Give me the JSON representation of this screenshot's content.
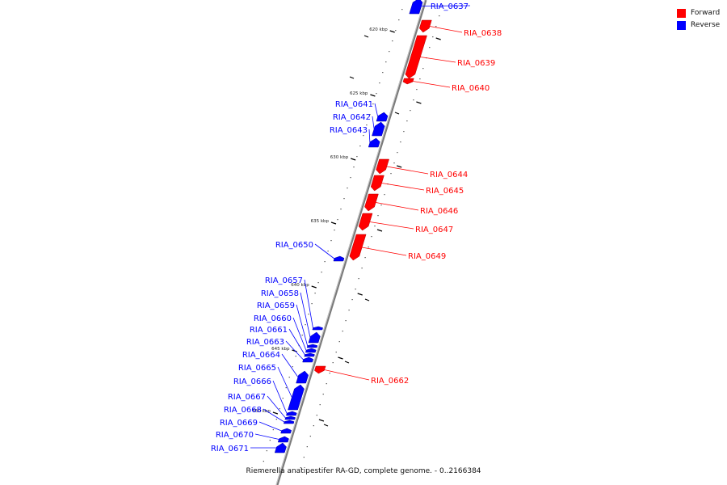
{
  "legend": {
    "forward_label": "Forward",
    "reverse_label": "Reverse",
    "forward_color": "#ff0000",
    "reverse_color": "#0000ff"
  },
  "caption": "Riemerella anatipestifer RA-GD, complete genome. - 0..2166384",
  "ticks": [
    {
      "label": "620 kbp",
      "bp": 620000
    },
    {
      "label": "625 kbp",
      "bp": 625000
    },
    {
      "label": "630 kbp",
      "bp": 630000
    },
    {
      "label": "635 kbp",
      "bp": 635000
    },
    {
      "label": "640 kbp",
      "bp": 640000
    },
    {
      "label": "645 kbp",
      "bp": 645000
    },
    {
      "label": "650 kbp",
      "bp": 650000
    }
  ],
  "genes": [
    {
      "name": "RIA_0637",
      "strand": "reverse"
    },
    {
      "name": "RIA_0638",
      "strand": "forward"
    },
    {
      "name": "RIA_0639",
      "strand": "forward"
    },
    {
      "name": "RIA_0640",
      "strand": "forward"
    },
    {
      "name": "RIA_0641",
      "strand": "reverse"
    },
    {
      "name": "RIA_0642",
      "strand": "reverse"
    },
    {
      "name": "RIA_0643",
      "strand": "reverse"
    },
    {
      "name": "RIA_0644",
      "strand": "forward"
    },
    {
      "name": "RIA_0645",
      "strand": "forward"
    },
    {
      "name": "RIA_0646",
      "strand": "forward"
    },
    {
      "name": "RIA_0647",
      "strand": "forward"
    },
    {
      "name": "RIA_0649",
      "strand": "forward"
    },
    {
      "name": "RIA_0650",
      "strand": "reverse"
    },
    {
      "name": "RIA_0657",
      "strand": "reverse"
    },
    {
      "name": "RIA_0658",
      "strand": "reverse"
    },
    {
      "name": "RIA_0659",
      "strand": "reverse"
    },
    {
      "name": "RIA_0660",
      "strand": "reverse"
    },
    {
      "name": "RIA_0661",
      "strand": "reverse"
    },
    {
      "name": "RIA_0663",
      "strand": "reverse"
    },
    {
      "name": "RIA_0664",
      "strand": "reverse"
    },
    {
      "name": "RIA_0665",
      "strand": "reverse"
    },
    {
      "name": "RIA_0666",
      "strand": "reverse"
    },
    {
      "name": "RIA_0667",
      "strand": "reverse"
    },
    {
      "name": "RIA_0668",
      "strand": "reverse"
    },
    {
      "name": "RIA_0669",
      "strand": "reverse"
    },
    {
      "name": "RIA_0670",
      "strand": "reverse"
    },
    {
      "name": "RIA_0671",
      "strand": "reverse"
    },
    {
      "name": "RIA_0662",
      "strand": "forward"
    }
  ]
}
